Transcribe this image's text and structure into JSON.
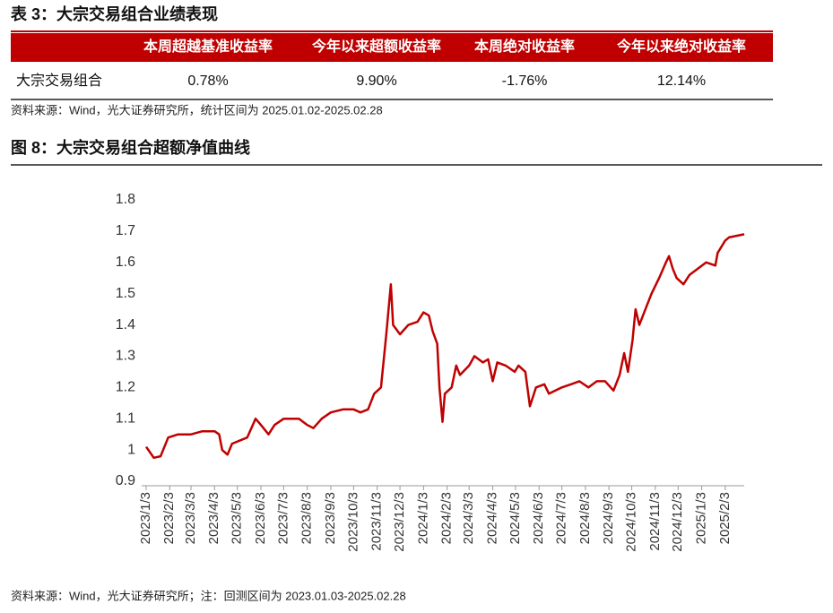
{
  "table_section": {
    "title": "表 3：大宗交易组合业绩表现",
    "headers": [
      "本周超越基准收益率",
      "今年以来超额收益率",
      "本周绝对收益率",
      "今年以来绝对收益率"
    ],
    "rows": [
      [
        "大宗交易组合",
        "0.78%",
        "9.90%",
        "-1.76%",
        "12.14%"
      ]
    ],
    "source": "资料来源：Wind，光大证券研究所，统计区间为 2025.01.02-2025.02.28"
  },
  "chart_data": {
    "type": "line",
    "title": "图 8：大宗交易组合超额净值曲线",
    "source": "资料来源：Wind，光大证券研究所；注：回测区间为 2023.01.03-2025.02.28",
    "x": [
      "2023/1/3",
      "2023/1/6",
      "2023/1/13",
      "2023/1/22",
      "2023/2/1",
      "2023/2/14",
      "2023/3/3",
      "2023/3/18",
      "2023/4/3",
      "2023/4/9",
      "2023/4/13",
      "2023/4/20",
      "2023/4/26",
      "2023/5/16",
      "2023/5/27",
      "2023/6/3",
      "2023/6/13",
      "2023/6/21",
      "2023/7/3",
      "2023/7/23",
      "2023/8/3",
      "2023/8/11",
      "2023/8/22",
      "2023/9/3",
      "2023/9/19",
      "2023/10/3",
      "2023/10/12",
      "2023/10/22",
      "2023/10/30",
      "2023/11/8",
      "2023/11/15",
      "2023/11/21",
      "2023/11/24",
      "2023/12/3",
      "2023/12/14",
      "2023/12/26",
      "2024/1/3",
      "2024/1/10",
      "2024/1/15",
      "2024/1/21",
      "2024/1/24",
      "2024/1/28",
      "2024/1/31",
      "2024/2/9",
      "2024/2/15",
      "2024/2/20",
      "2024/3/3",
      "2024/3/10",
      "2024/3/21",
      "2024/3/28",
      "2024/4/3",
      "2024/4/9",
      "2024/4/20",
      "2024/5/2",
      "2024/5/7",
      "2024/5/16",
      "2024/5/22",
      "2024/5/30",
      "2024/6/10",
      "2024/6/16",
      "2024/7/3",
      "2024/7/15",
      "2024/7/26",
      "2024/8/7",
      "2024/8/18",
      "2024/8/29",
      "2024/9/9",
      "2024/9/17",
      "2024/9/23",
      "2024/9/28",
      "2024/10/4",
      "2024/10/8",
      "2024/10/13",
      "2024/10/21",
      "2024/10/29",
      "2024/11/8",
      "2024/11/17",
      "2024/11/21",
      "2024/11/26",
      "2024/12/1",
      "2024/12/10",
      "2024/12/18",
      "2024/12/29",
      "2025/1/9",
      "2025/1/21",
      "2025/1/24",
      "2025/2/3",
      "2025/2/8",
      "2025/2/28"
    ],
    "series": [
      {
        "name": "大宗交易组合",
        "color": "#c00000",
        "values": [
          1.01,
          1.0,
          0.975,
          0.98,
          1.04,
          1.05,
          1.05,
          1.06,
          1.06,
          1.05,
          1.0,
          0.985,
          1.02,
          1.04,
          1.1,
          1.08,
          1.05,
          1.08,
          1.1,
          1.1,
          1.08,
          1.07,
          1.1,
          1.12,
          1.13,
          1.13,
          1.12,
          1.13,
          1.18,
          1.2,
          1.37,
          1.53,
          1.4,
          1.37,
          1.4,
          1.41,
          1.44,
          1.43,
          1.38,
          1.34,
          1.2,
          1.09,
          1.18,
          1.2,
          1.27,
          1.24,
          1.27,
          1.3,
          1.28,
          1.29,
          1.22,
          1.28,
          1.27,
          1.25,
          1.27,
          1.25,
          1.14,
          1.2,
          1.21,
          1.18,
          1.2,
          1.21,
          1.22,
          1.2,
          1.22,
          1.22,
          1.19,
          1.24,
          1.31,
          1.25,
          1.35,
          1.45,
          1.4,
          1.45,
          1.5,
          1.55,
          1.6,
          1.62,
          1.58,
          1.55,
          1.53,
          1.56,
          1.58,
          1.6,
          1.59,
          1.63,
          1.67,
          1.68,
          1.69
        ]
      }
    ],
    "xlim": [
      "2023/1/3",
      "2025/2/28"
    ],
    "xticks": [
      "2023/1/3",
      "2023/2/3",
      "2023/3/3",
      "2023/4/3",
      "2023/5/3",
      "2023/6/3",
      "2023/7/3",
      "2023/8/3",
      "2023/9/3",
      "2023/10/3",
      "2023/11/3",
      "2023/12/3",
      "2024/1/3",
      "2024/2/3",
      "2024/3/3",
      "2024/4/3",
      "2024/5/3",
      "2024/6/3",
      "2024/7/3",
      "2024/8/3",
      "2024/9/3",
      "2024/10/3",
      "2024/11/3",
      "2024/12/3",
      "2025/1/3",
      "2025/2/3"
    ],
    "ylim": [
      0.9,
      1.8
    ],
    "yticks": [
      0.9,
      1,
      1.1,
      1.2,
      1.3,
      1.4,
      1.5,
      1.6,
      1.7,
      1.8
    ],
    "grid": false
  }
}
